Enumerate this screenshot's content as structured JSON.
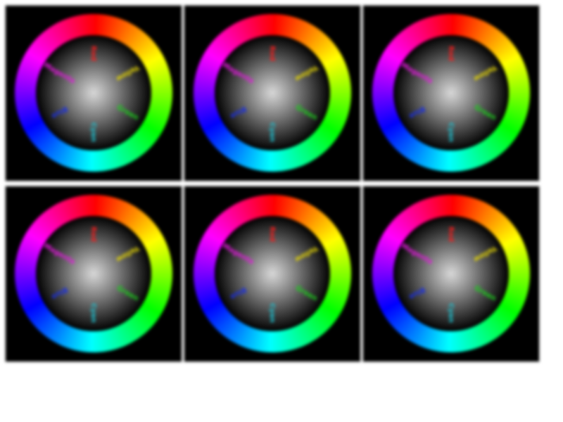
{
  "tiles": [
    {
      "id": "tile-1"
    },
    {
      "id": "tile-2"
    },
    {
      "id": "tile-3"
    },
    {
      "id": "tile-4"
    },
    {
      "id": "tile-5"
    },
    {
      "id": "tile-6"
    }
  ],
  "wheel": {
    "hue_stops": [
      "#ff0000",
      "#ffff00",
      "#00ff00",
      "#00ffff",
      "#0000ff",
      "#ff00ff",
      "#ff0000"
    ],
    "center_color": "#d8d8d8",
    "labels": [
      {
        "text": "Red",
        "color": "#ff1a1a",
        "angle": 0
      },
      {
        "text": "Yellow",
        "color": "#e6d600",
        "angle": 60
      },
      {
        "text": "Green",
        "color": "#1bd11b",
        "angle": 120
      },
      {
        "text": "Cyan",
        "color": "#1ac8d8",
        "angle": 180
      },
      {
        "text": "Blue",
        "color": "#1a2fe6",
        "angle": 240
      },
      {
        "text": "Magenta",
        "color": "#e61ae0",
        "angle": 300
      }
    ]
  }
}
